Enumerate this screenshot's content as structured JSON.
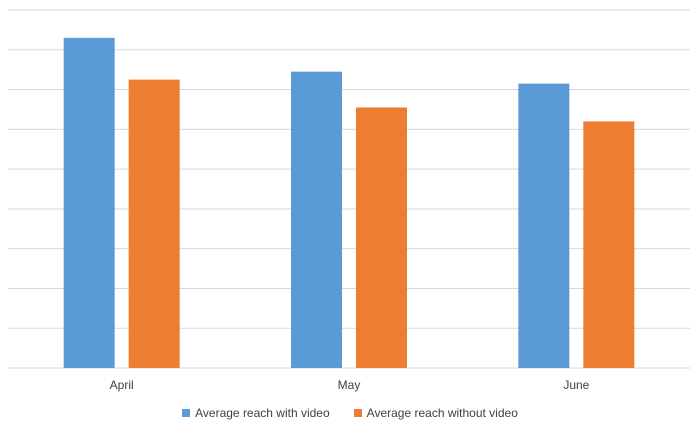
{
  "chart_data": {
    "type": "bar",
    "categories": [
      "April",
      "May",
      "June"
    ],
    "series": [
      {
        "name": "Average reach with video",
        "values": [
          8.3,
          7.45,
          7.15
        ],
        "color": "#5B9BD5"
      },
      {
        "name": "Average reach without video",
        "values": [
          7.25,
          6.55,
          6.2
        ],
        "color": "#ED7D31"
      }
    ],
    "ylim": [
      0,
      9
    ],
    "y_gridlines": 9,
    "grid": true,
    "legend": "bottom",
    "gridline_color": "#D9D9D9"
  }
}
